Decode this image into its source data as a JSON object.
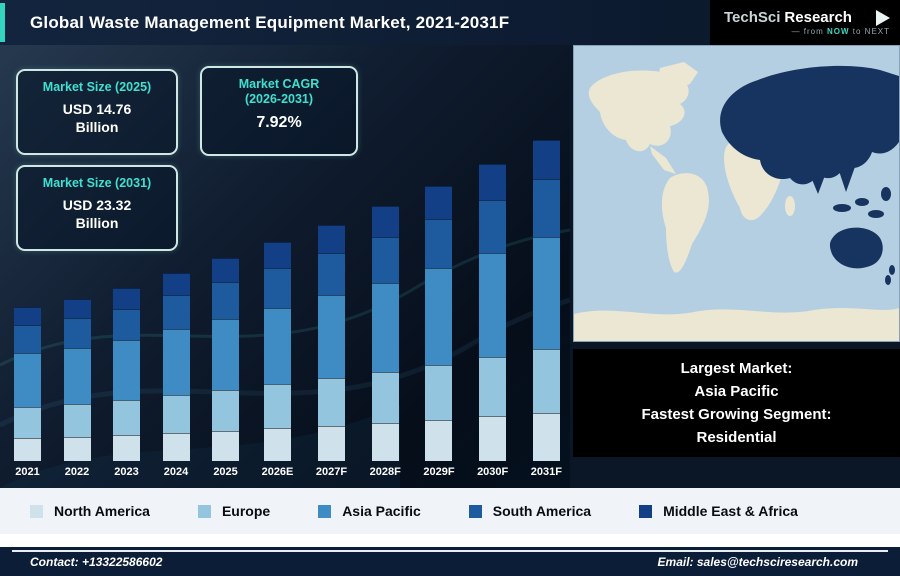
{
  "header": {
    "title": "Global Waste Management Equipment Market, 2021-2031F",
    "logo": {
      "brand1": "TechSci",
      "brand2": "Research",
      "tagline_pre": "from ",
      "tagline_now": "NOW",
      "tagline_post": " to NEXT"
    }
  },
  "info_boxes": {
    "size_2025": {
      "title": "Market Size (2025)",
      "value": "USD 14.76",
      "unit": "Billion"
    },
    "cagr": {
      "title_line1": "Market CAGR",
      "title_line2": "(2026-2031)",
      "value": "7.92%"
    },
    "size_2031": {
      "title": "Market Size (2031)",
      "value": "USD 23.32",
      "unit": "Billion"
    }
  },
  "map_callout": {
    "line1": "Largest Market:",
    "line2": "Asia Pacific",
    "line3": "Fastest Growing Segment:",
    "line4": "Residential"
  },
  "legend": {
    "items": [
      {
        "label": "North America",
        "color": "#cfe2ec"
      },
      {
        "label": "Europe",
        "color": "#94c5de"
      },
      {
        "label": "Asia Pacific",
        "color": "#3f8cc4"
      },
      {
        "label": "South America",
        "color": "#1e5a9e"
      },
      {
        "label": "Middle East & Africa",
        "color": "#123f86"
      }
    ]
  },
  "chart_data": {
    "type": "bar",
    "stacked": true,
    "title": "Global Waste Management Equipment Market, 2021-2031F",
    "unit": "USD Billion",
    "categories": [
      "2021",
      "2022",
      "2023",
      "2024",
      "2025",
      "2026E",
      "2027F",
      "2028F",
      "2029F",
      "2030F",
      "2031F"
    ],
    "totals": [
      11.2,
      11.8,
      12.6,
      13.7,
      14.76,
      15.93,
      17.19,
      18.55,
      20.02,
      21.61,
      23.32
    ],
    "series": [
      {
        "name": "North America",
        "color": "#cfe2ec",
        "values": [
          1.68,
          1.77,
          1.89,
          2.06,
          2.21,
          2.39,
          2.58,
          2.78,
          3.0,
          3.24,
          3.5
        ]
      },
      {
        "name": "Europe",
        "color": "#94c5de",
        "values": [
          2.24,
          2.36,
          2.52,
          2.74,
          2.95,
          3.19,
          3.44,
          3.71,
          4.0,
          4.32,
          4.66
        ]
      },
      {
        "name": "Asia Pacific",
        "color": "#3f8cc4",
        "values": [
          3.92,
          4.13,
          4.41,
          4.8,
          5.17,
          5.58,
          6.02,
          6.49,
          7.01,
          7.56,
          8.16
        ]
      },
      {
        "name": "South America",
        "color": "#1e5a9e",
        "values": [
          2.02,
          2.12,
          2.27,
          2.47,
          2.66,
          2.87,
          3.09,
          3.34,
          3.6,
          3.89,
          4.2
        ]
      },
      {
        "name": "Middle East & Africa",
        "color": "#123f86",
        "values": [
          1.34,
          1.42,
          1.51,
          1.64,
          1.77,
          1.91,
          2.06,
          2.23,
          2.4,
          2.59,
          2.8
        ]
      }
    ],
    "annotations": [
      "Market Size (2025): USD 14.76 Billion",
      "Market CAGR (2026-2031): 7.92%",
      "Market Size (2031): USD 23.32 Billion"
    ],
    "xlabel": "",
    "ylabel": "",
    "ylim": [
      0,
      24
    ],
    "grid": false,
    "legend_position": "bottom"
  },
  "footer": {
    "contact": "Contact: +13322586602",
    "email": "Email: sales@techsciresearch.com"
  }
}
